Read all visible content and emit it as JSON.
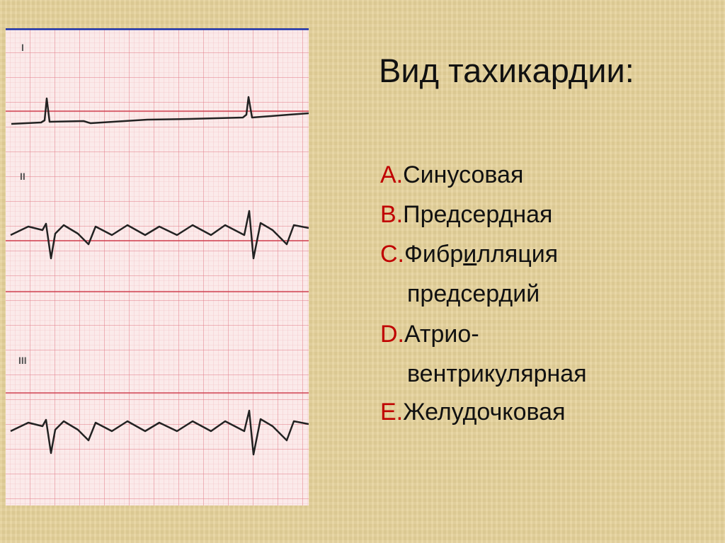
{
  "title": "Вид тахикардии:",
  "ecg": {
    "leads": [
      "I",
      "II",
      "III"
    ]
  },
  "options": [
    {
      "letter": "A.",
      "text": "Синусовая"
    },
    {
      "letter": "B.",
      "text": "Предсердная"
    },
    {
      "letter": "C.",
      "text_before": "Фибр",
      "text_underlined": "и",
      "text_after": "лляция",
      "text_line2": "предсердий"
    },
    {
      "letter": "D.",
      "text": "Атрио-",
      "text_line2": "вентрикулярная"
    },
    {
      "letter": "E.",
      "text": "Желудочковая"
    }
  ]
}
